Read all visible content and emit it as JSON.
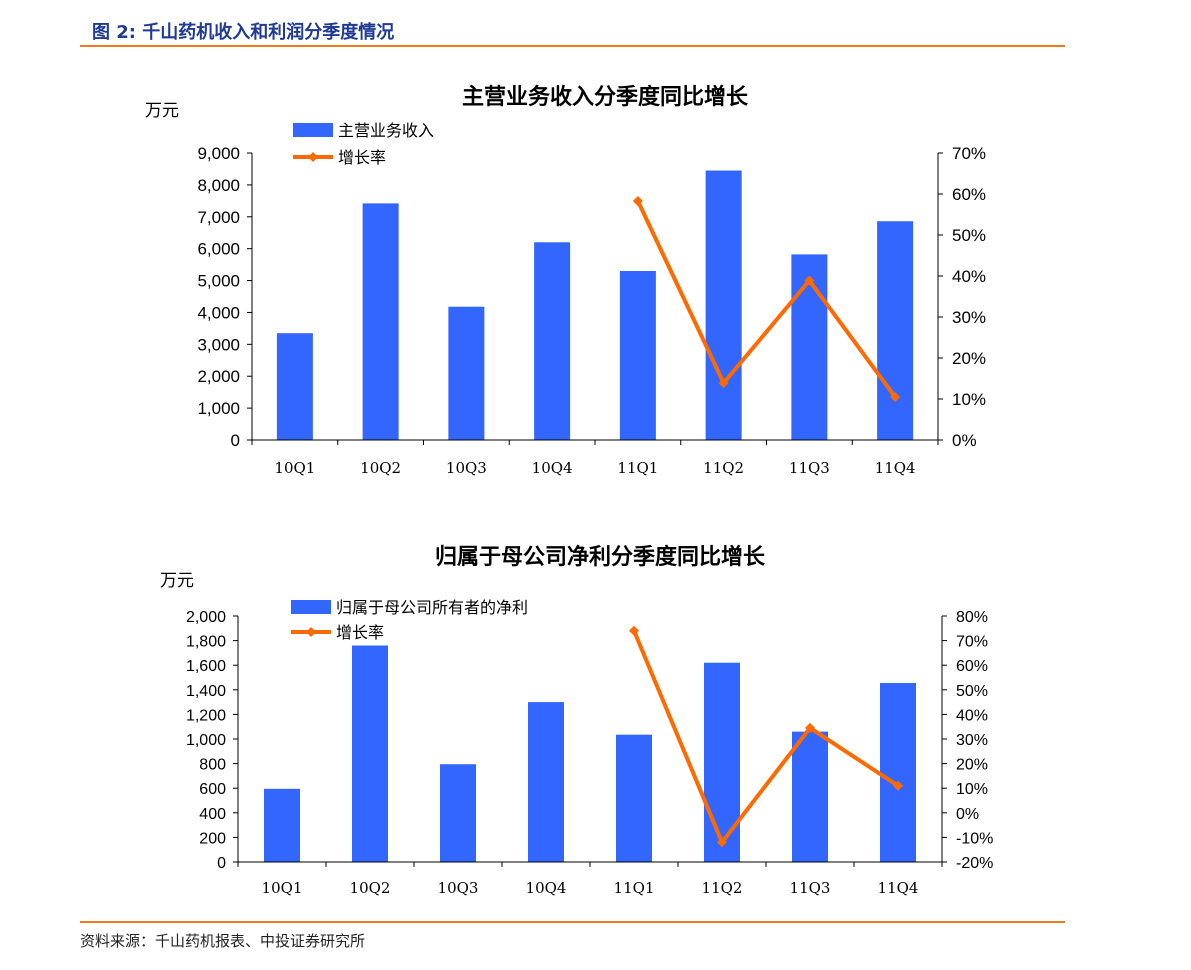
{
  "figure": {
    "label": "图 2:",
    "title": "千山药机收入和利润分季度情况",
    "source": "资料来源：千山药机报表、中投证券研究所"
  },
  "chart_data": [
    {
      "type": "bar",
      "title": "主营业务收入分季度同比增长",
      "ylabel": "万元",
      "categories": [
        "10Q1",
        "10Q2",
        "10Q3",
        "10Q4",
        "11Q1",
        "11Q2",
        "11Q3",
        "11Q4"
      ],
      "series": [
        {
          "name": "主营业务收入",
          "type": "bar",
          "axis": "left",
          "values": [
            3350,
            7420,
            4180,
            6200,
            5300,
            8450,
            5820,
            6860
          ]
        },
        {
          "name": "增长率",
          "type": "line",
          "axis": "right",
          "values": [
            null,
            null,
            null,
            null,
            58.3,
            13.9,
            38.9,
            10.5
          ]
        }
      ],
      "ylim": [
        0,
        9000
      ],
      "yticks": [
        0,
        1000,
        2000,
        3000,
        4000,
        5000,
        6000,
        7000,
        8000,
        9000
      ],
      "ytick_labels": [
        "0",
        "1,000",
        "2,000",
        "3,000",
        "4,000",
        "5,000",
        "6,000",
        "7,000",
        "8,000",
        "9,000"
      ],
      "y2lim": [
        0,
        70
      ],
      "y2ticks": [
        0,
        10,
        20,
        30,
        40,
        50,
        60,
        70
      ],
      "y2tick_labels": [
        "0%",
        "10%",
        "20%",
        "30%",
        "40%",
        "50%",
        "60%",
        "70%"
      ],
      "legend_position": "top-left",
      "grid": false,
      "colors": {
        "bar": "#3366ff",
        "line": "#ff6a00"
      }
    },
    {
      "type": "bar",
      "title": "归属于母公司净利分季度同比增长",
      "ylabel": "万元",
      "categories": [
        "10Q1",
        "10Q2",
        "10Q3",
        "10Q4",
        "11Q1",
        "11Q2",
        "11Q3",
        "11Q4"
      ],
      "series": [
        {
          "name": "归属于母公司所有者的净利",
          "type": "bar",
          "axis": "left",
          "values": [
            595,
            1760,
            795,
            1300,
            1035,
            1620,
            1060,
            1455
          ]
        },
        {
          "name": "增长率",
          "type": "line",
          "axis": "right",
          "values": [
            null,
            null,
            null,
            null,
            74,
            -12,
            34.5,
            11
          ]
        }
      ],
      "ylim": [
        0,
        2000
      ],
      "yticks": [
        0,
        200,
        400,
        600,
        800,
        1000,
        1200,
        1400,
        1600,
        1800,
        2000
      ],
      "ytick_labels": [
        "0",
        "200",
        "400",
        "600",
        "800",
        "1,000",
        "1,200",
        "1,400",
        "1,600",
        "1,800",
        "2,000"
      ],
      "y2lim": [
        -20,
        80
      ],
      "y2ticks": [
        -20,
        -10,
        0,
        10,
        20,
        30,
        40,
        50,
        60,
        70,
        80
      ],
      "y2tick_labels": [
        "-20%",
        "-10%",
        "0%",
        "10%",
        "20%",
        "30%",
        "40%",
        "50%",
        "60%",
        "70%",
        "80%"
      ],
      "legend_position": "top-left",
      "grid": false,
      "colors": {
        "bar": "#3366ff",
        "line": "#ff6a00"
      }
    }
  ]
}
